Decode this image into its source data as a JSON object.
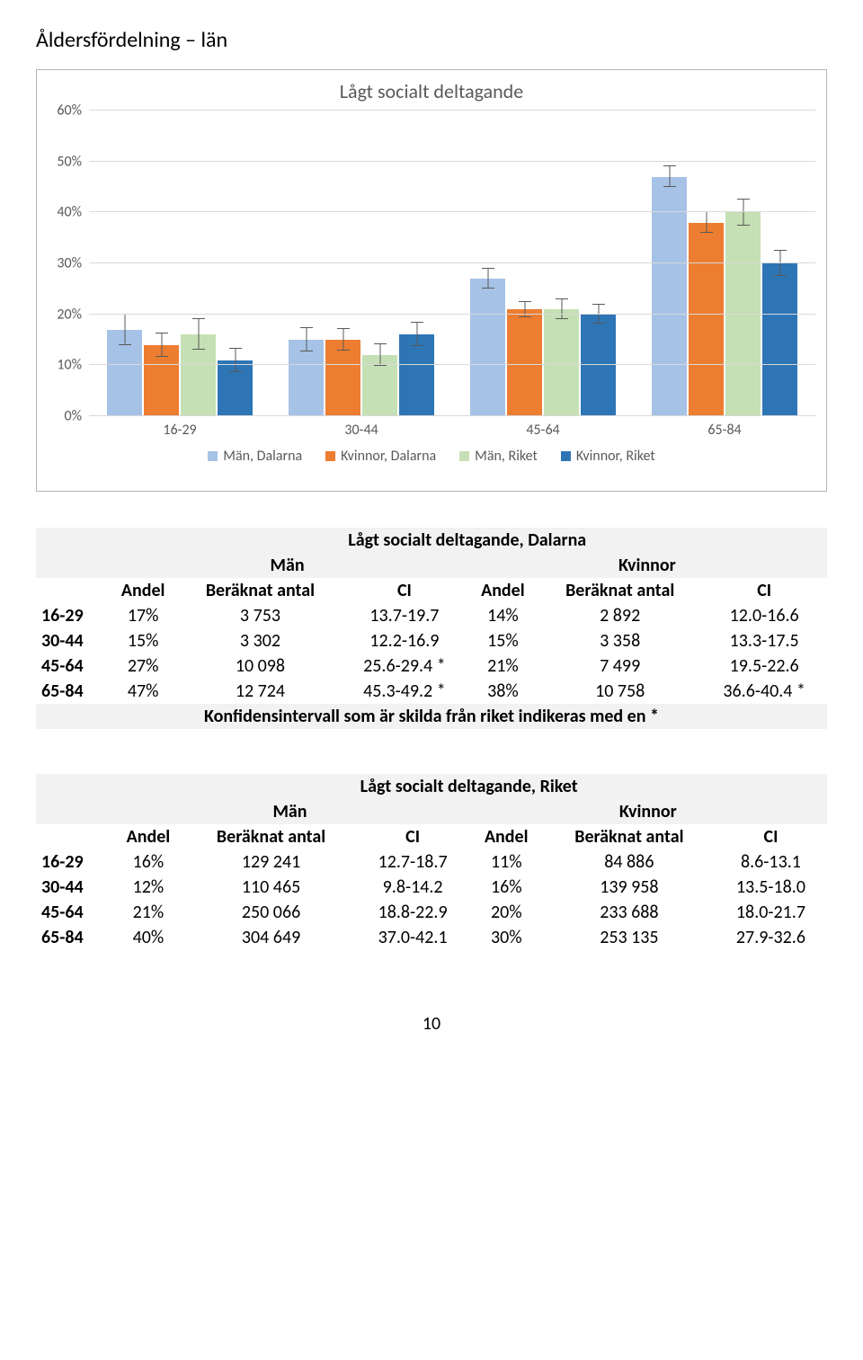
{
  "page_title": "Åldersfördelning – län",
  "page_number": "10",
  "chart": {
    "type": "bar",
    "title": "Lågt socialt deltagande",
    "y_ticks": [
      "0%",
      "10%",
      "20%",
      "30%",
      "40%",
      "50%",
      "60%"
    ],
    "y_max": 60,
    "background_color": "#ffffff",
    "grid_color": "#d9d9d9",
    "axis_text_color": "#595959",
    "categories": [
      "16-29",
      "30-44",
      "45-64",
      "65-84"
    ],
    "series": [
      {
        "label": "Män, Dalarna",
        "color": "#a6c2e6",
        "values": [
          17,
          15,
          27,
          47
        ],
        "err": [
          3,
          2.3,
          2,
          2
        ]
      },
      {
        "label": "Kvinnor, Dalarna",
        "color": "#ed7d31",
        "values": [
          14,
          15,
          21,
          38
        ],
        "err": [
          2.3,
          2.1,
          1.5,
          2
        ]
      },
      {
        "label": "Män, Riket",
        "color": "#c5e0b4",
        "values": [
          16,
          12,
          21,
          40
        ],
        "err": [
          3,
          2.2,
          2,
          2.5
        ]
      },
      {
        "label": "Kvinnor, Riket",
        "color": "#2e75b6",
        "values": [
          11,
          16,
          20,
          30
        ],
        "err": [
          2.3,
          2.3,
          1.8,
          2.4
        ]
      }
    ]
  },
  "table1": {
    "title": "Lågt socialt deltagande, Dalarna",
    "group_headers": [
      "Män",
      "Kvinnor"
    ],
    "columns": [
      "Andel",
      "Beräknat antal",
      "CI",
      "Andel",
      "Beräknat antal",
      "CI"
    ],
    "rows": [
      {
        "label": "16-29",
        "cells": [
          "17%",
          "3 753",
          "13.7-19.7",
          "14%",
          "2 892",
          "12.0-16.6"
        ]
      },
      {
        "label": "30-44",
        "cells": [
          "15%",
          "3 302",
          "12.2-16.9",
          "15%",
          "3 358",
          "13.3-17.5"
        ]
      },
      {
        "label": "45-64",
        "cells": [
          "27%",
          "10 098",
          "25.6-29.4 *",
          "21%",
          "7 499",
          "19.5-22.6"
        ]
      },
      {
        "label": "65-84",
        "cells": [
          "47%",
          "12 724",
          "45.3-49.2 *",
          "38%",
          "10 758",
          "36.6-40.4 *"
        ]
      }
    ],
    "note": "Konfidensintervall som är skilda från riket indikeras med en *"
  },
  "table2": {
    "title": "Lågt socialt deltagande, Riket",
    "group_headers": [
      "Män",
      "Kvinnor"
    ],
    "columns": [
      "Andel",
      "Beräknat antal",
      "CI",
      "Andel",
      "Beräknat antal",
      "CI"
    ],
    "rows": [
      {
        "label": "16-29",
        "cells": [
          "16%",
          "129 241",
          "12.7-18.7",
          "11%",
          "84 886",
          "8.6-13.1"
        ]
      },
      {
        "label": "30-44",
        "cells": [
          "12%",
          "110 465",
          "9.8-14.2",
          "16%",
          "139 958",
          "13.5-18.0"
        ]
      },
      {
        "label": "45-64",
        "cells": [
          "21%",
          "250 066",
          "18.8-22.9",
          "20%",
          "233 688",
          "18.0-21.7"
        ]
      },
      {
        "label": "65-84",
        "cells": [
          "40%",
          "304 649",
          "37.0-42.1",
          "30%",
          "253 135",
          "27.9-32.6"
        ]
      }
    ]
  }
}
